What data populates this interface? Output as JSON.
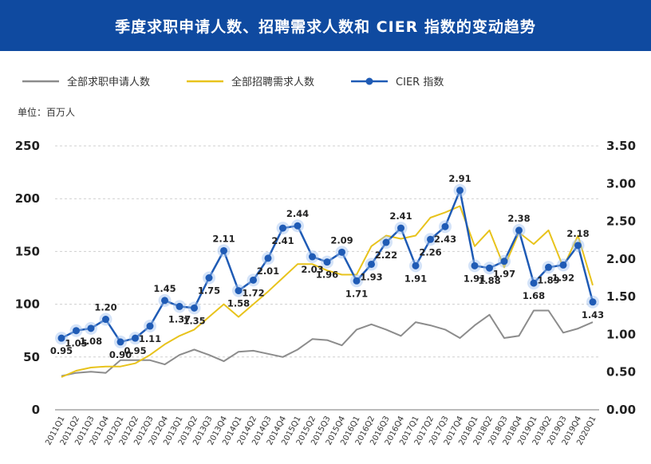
{
  "title": "季度求职申请人数、招聘需求人数和 CIER 指数的变动趋势",
  "unit_label": "单位：百万人",
  "colors": {
    "banner": "#0f4aa0",
    "applicants": "#8c8c8c",
    "demand": "#e8c31c",
    "cier": "#1f5bb5",
    "grid": "#cfcfcf"
  },
  "chart_data": {
    "type": "line",
    "categories": [
      "2011Q1",
      "2011Q2",
      "2011Q3",
      "2011Q4",
      "2012Q1",
      "2012Q2",
      "2012Q3",
      "2012Q4",
      "2013Q1",
      "2013Q2",
      "2013Q3",
      "2013Q4",
      "2014Q1",
      "2014Q2",
      "2014Q3",
      "2014Q4",
      "2015Q1",
      "2015Q2",
      "2015Q3",
      "2015Q4",
      "2016Q1",
      "2016Q2",
      "2016Q3",
      "2016Q4",
      "2017Q1",
      "2017Q2",
      "2017Q3",
      "2017Q4",
      "2018Q1",
      "2018Q2",
      "2018Q3",
      "2018Q4",
      "2019Q1",
      "2019Q2",
      "2019Q3",
      "2019Q4",
      "2020Q1"
    ],
    "y_left": {
      "ylim": [
        0,
        250
      ],
      "ticks": [
        "0",
        "50",
        "100",
        "150",
        "200",
        "250"
      ]
    },
    "y_right": {
      "ylim": [
        0,
        3.5
      ],
      "ticks": [
        "0.00",
        "0.50",
        "1.00",
        "1.50",
        "2.00",
        "2.50",
        "3.00",
        "3.50"
      ]
    },
    "legend_position": "top-left",
    "grid": true,
    "series": [
      {
        "name": "全部求职申请人数",
        "axis": "left",
        "values": [
          32,
          35,
          36,
          35,
          47,
          47,
          47,
          43,
          52,
          57,
          52,
          46,
          55,
          56,
          53,
          50,
          57,
          67,
          66,
          61,
          76,
          81,
          76,
          70,
          83,
          80,
          76,
          68,
          80,
          90,
          68,
          70,
          94,
          94,
          73,
          77,
          83
        ]
      },
      {
        "name": "全部招聘需求人数",
        "axis": "left",
        "values": [
          31,
          37,
          40,
          41,
          41,
          44,
          52,
          62,
          70,
          76,
          88,
          100,
          88,
          100,
          112,
          125,
          138,
          138,
          132,
          128,
          128,
          155,
          165,
          162,
          165,
          182,
          187,
          193,
          155,
          170,
          135,
          168,
          157,
          170,
          135,
          165,
          118
        ]
      },
      {
        "name": "CIER 指数",
        "axis": "right",
        "values": [
          0.95,
          1.05,
          1.08,
          1.2,
          0.9,
          0.95,
          1.11,
          1.45,
          1.37,
          1.35,
          1.75,
          2.11,
          1.58,
          1.72,
          2.01,
          2.41,
          2.44,
          2.03,
          1.96,
          2.09,
          1.71,
          1.93,
          2.22,
          2.41,
          1.91,
          2.26,
          2.43,
          2.91,
          1.91,
          1.88,
          1.97,
          2.38,
          1.68,
          1.89,
          1.92,
          2.18,
          1.43
        ],
        "labels": [
          "0.95",
          "1.05",
          "1.08",
          "1.20",
          "0.90",
          "0.95",
          "1.11",
          "1.45",
          "1.37",
          "1.35",
          "1.75",
          "2.11",
          "1.58",
          "1.72",
          "2.01",
          "2.41",
          "2.44",
          "2.03",
          "1.96",
          "2.09",
          "1.71",
          "1.93",
          "2.22",
          "2.41",
          "1.91",
          "2.26",
          "2.43",
          "2.91",
          "1.91",
          "1.88",
          "1.97",
          "2.38",
          "1.68",
          "1.89",
          "1.92",
          "2.18",
          "1.43"
        ],
        "label_visible": [
          true,
          true,
          true,
          true,
          true,
          true,
          true,
          true,
          true,
          true,
          true,
          true,
          true,
          true,
          true,
          true,
          true,
          true,
          true,
          true,
          true,
          true,
          true,
          true,
          true,
          true,
          true,
          true,
          true,
          true,
          true,
          true,
          true,
          true,
          true,
          true,
          true
        ]
      }
    ]
  }
}
